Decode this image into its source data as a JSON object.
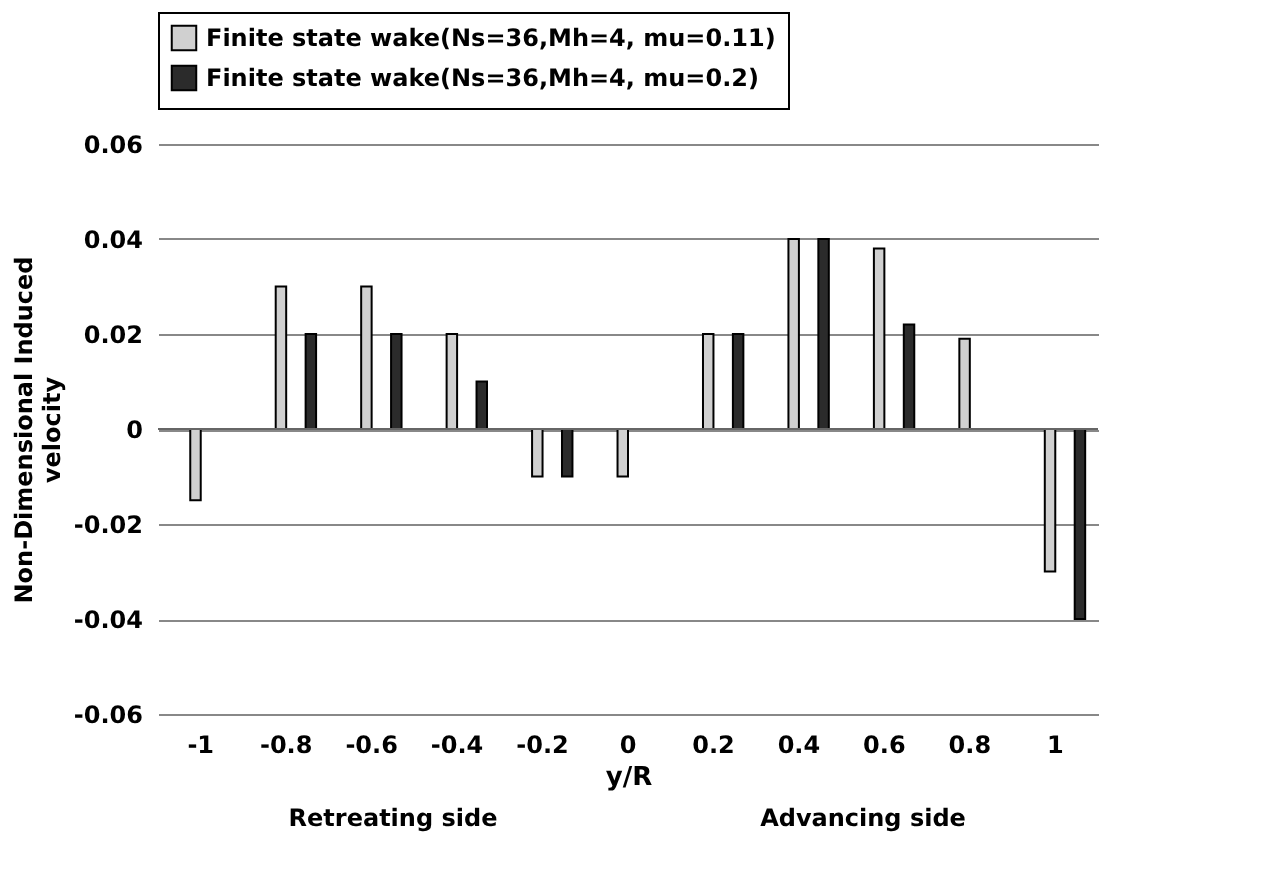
{
  "chart_data": {
    "type": "bar",
    "xlabel": "y/R",
    "ylabel": "Non-Dimensional Induced velocity",
    "categories": [
      "-1",
      "-0.8",
      "-0.6",
      "-0.4",
      "-0.2",
      "0",
      "0.2",
      "0.4",
      "0.6",
      "0.8",
      "1"
    ],
    "series": [
      {
        "name": "Finite state wake(Ns=36,Mh=4, mu=0.11)",
        "color": "#d0d0d0",
        "values": [
          -0.015,
          0.03,
          0.03,
          0.02,
          -0.01,
          -0.01,
          0.02,
          0.04,
          0.038,
          0.019,
          -0.03
        ]
      },
      {
        "name": "Finite state wake(Ns=36,Mh=4, mu=0.2)",
        "color": "#2b2b2b",
        "values": [
          null,
          0.02,
          0.02,
          0.01,
          -0.01,
          null,
          0.02,
          0.04,
          0.022,
          null,
          -0.04
        ]
      }
    ],
    "ylim": [
      -0.06,
      0.06
    ],
    "yticks": [
      -0.06,
      -0.04,
      -0.02,
      0,
      0.02,
      0.04,
      0.06
    ],
    "grid": "y",
    "legend": "top",
    "annotations": [
      "Retreating side",
      "Advancing side"
    ]
  }
}
